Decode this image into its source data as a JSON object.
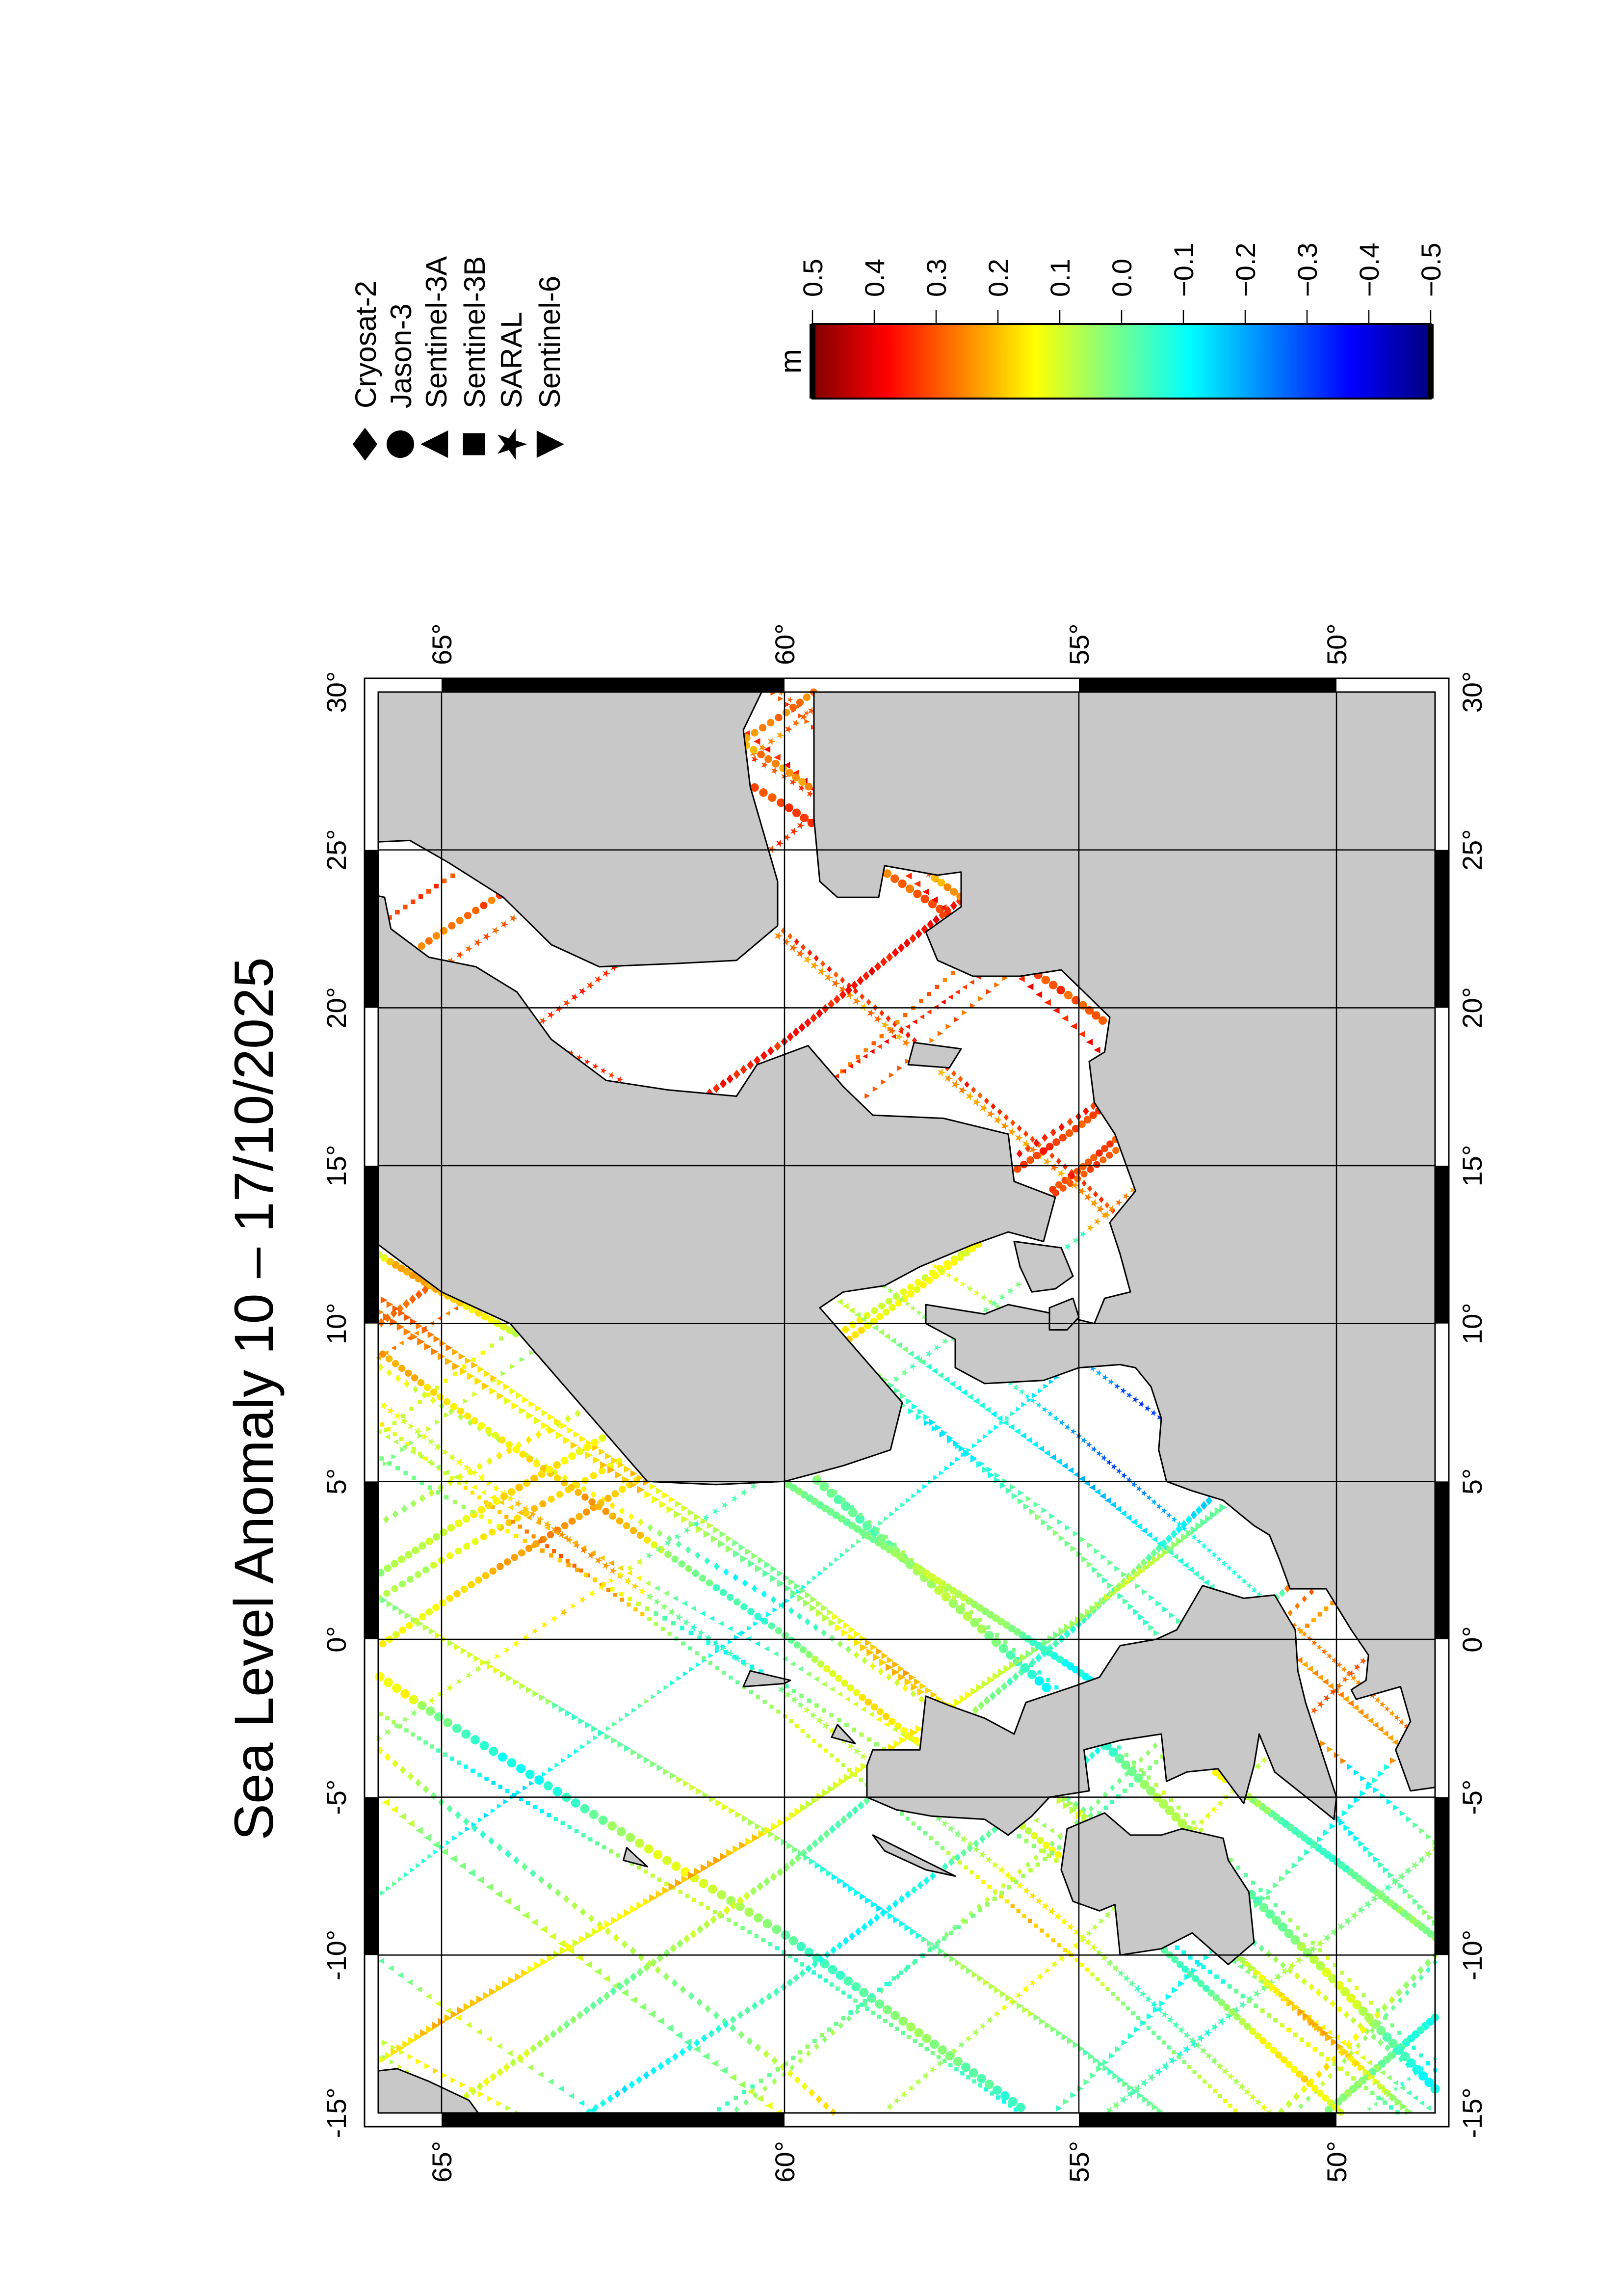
{
  "title": "Sea Level Anomaly 10 – 17/10/2025",
  "legend": [
    {
      "label": "Cryosat-2",
      "symbol": "diamond"
    },
    {
      "label": "Jason-3",
      "symbol": "circle"
    },
    {
      "label": "Sentinel-3A",
      "symbol": "triangle"
    },
    {
      "label": "Sentinel-3B",
      "symbol": "square"
    },
    {
      "label": "SARAL",
      "symbol": "star"
    },
    {
      "label": "Sentinel-6",
      "symbol": "inverted-triangle"
    }
  ],
  "colorbar": {
    "unit": "m",
    "min": -0.5,
    "max": 0.5,
    "tick_values": [
      0.5,
      0.4,
      0.3,
      0.2,
      0.1,
      0.0,
      -0.1,
      -0.2,
      -0.3,
      -0.4,
      -0.5
    ],
    "tick_labels": [
      "0.5",
      "0.4",
      "0.3",
      "0.2",
      "0.1",
      "0.0",
      "−0.1",
      "−0.2",
      "−0.3",
      "−0.4",
      "−0.5"
    ],
    "colormap": [
      "#800000",
      "#ff0000",
      "#ff8000",
      "#ffff00",
      "#80ff80",
      "#00ffff",
      "#0080ff",
      "#0000ff",
      "#000080"
    ]
  },
  "map": {
    "lon_range": [
      -15,
      30
    ],
    "lat_range": [
      48,
      66
    ],
    "lon_ticks": [
      30,
      25,
      20,
      15,
      10,
      5,
      0,
      -5,
      -10,
      -15
    ],
    "lon_tick_labels": [
      "30°",
      "25°",
      "20°",
      "15°",
      "10°",
      "5°",
      "0°",
      "-5°",
      "-10°",
      "-15°"
    ],
    "lat_ticks": [
      65,
      60,
      55,
      50
    ],
    "lat_tick_labels": [
      "65°",
      "60°",
      "55°",
      "50°"
    ],
    "land_color": "#c8c8c8",
    "ocean_color": "#ffffff",
    "grid": true,
    "frame": "alternating black/white"
  }
}
